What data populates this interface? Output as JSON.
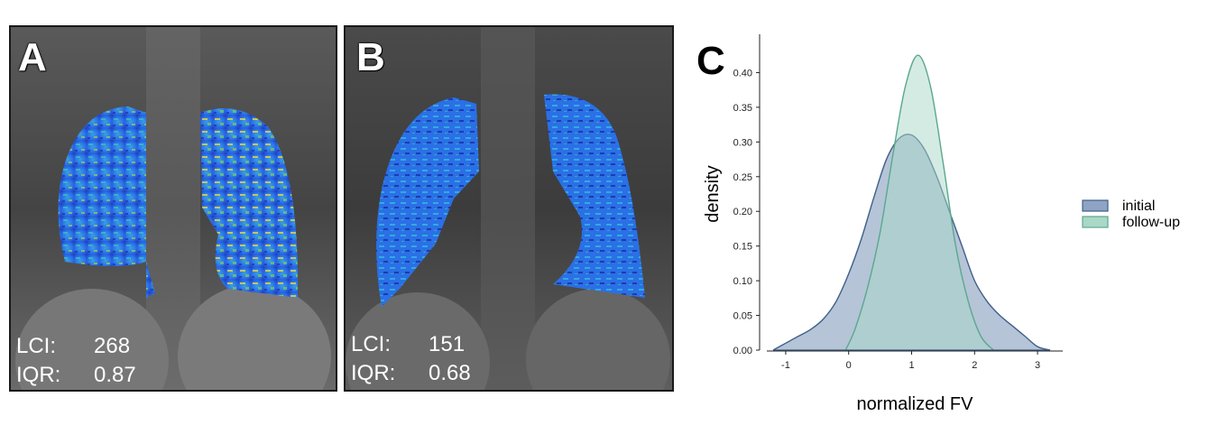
{
  "panels": [
    {
      "label": "A",
      "lci_label": "LCI:",
      "lci_value": "268",
      "iqr_label": "IQR:",
      "iqr_value": "0.87"
    },
    {
      "label": "B",
      "lci_label": "LCI:",
      "lci_value": "151",
      "iqr_label": "IQR:",
      "iqr_value": "0.68"
    }
  ],
  "chart_label": "C",
  "chart_data": {
    "type": "area",
    "title": "",
    "xlabel": "normalized FV",
    "ylabel": "density",
    "xlim": [
      -1.3,
      3.4
    ],
    "ylim": [
      0,
      0.45
    ],
    "xticks": [
      -1,
      0,
      1,
      2,
      3
    ],
    "yticks": [
      0.0,
      0.05,
      0.1,
      0.15,
      0.2,
      0.25,
      0.3,
      0.35,
      0.4
    ],
    "legend_position": "right",
    "series": [
      {
        "name": "initial",
        "color": "#3f5f8a",
        "fill": "#8ea4c2",
        "x": [
          -1.2,
          -1.0,
          -0.8,
          -0.6,
          -0.4,
          -0.2,
          0.0,
          0.2,
          0.4,
          0.6,
          0.8,
          1.0,
          1.2,
          1.4,
          1.6,
          1.8,
          2.0,
          2.2,
          2.4,
          2.6,
          2.8,
          3.0,
          3.2
        ],
        "y": [
          0.0,
          0.01,
          0.02,
          0.03,
          0.045,
          0.07,
          0.11,
          0.16,
          0.22,
          0.275,
          0.305,
          0.31,
          0.29,
          0.25,
          0.2,
          0.15,
          0.1,
          0.07,
          0.05,
          0.035,
          0.02,
          0.005,
          0.0
        ]
      },
      {
        "name": "follow-up",
        "color": "#5aa88e",
        "fill": "#a9d8c7",
        "x": [
          -0.05,
          0.1,
          0.3,
          0.5,
          0.7,
          0.9,
          1.1,
          1.3,
          1.5,
          1.7,
          1.9,
          2.1,
          2.3
        ],
        "y": [
          0.0,
          0.03,
          0.09,
          0.17,
          0.28,
          0.38,
          0.425,
          0.38,
          0.27,
          0.15,
          0.07,
          0.02,
          0.0
        ]
      }
    ]
  }
}
